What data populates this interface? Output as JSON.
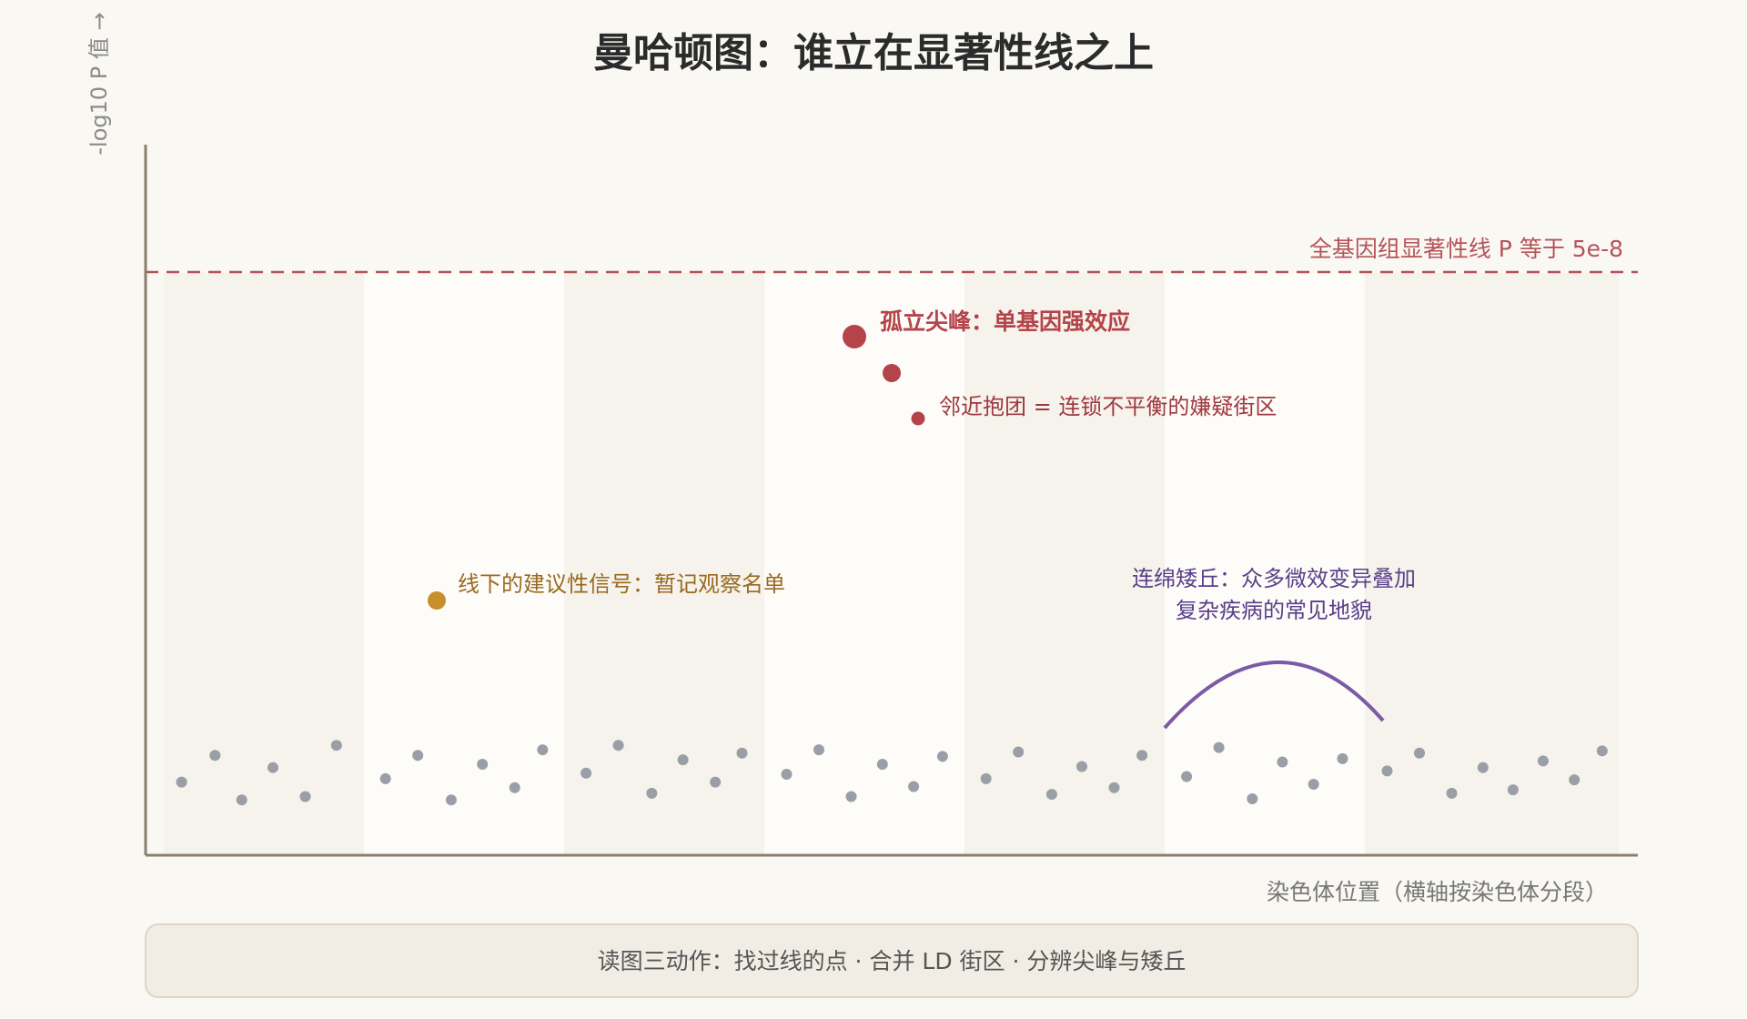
{
  "header": {
    "title": "曼哈顿图：谁立在显著性线之上"
  },
  "axes": {
    "y_label": "-log10 P 值 →",
    "x_label": "染色体位置（横轴按染色体分段）"
  },
  "threshold": {
    "label": "全基因组显著性线 P 等于 5e-8"
  },
  "annotations": {
    "peak": "孤立尖峰：单基因强效应",
    "cluster": "邻近抱团 = 连锁不平衡的嫌疑街区",
    "suggestive": "线下的建议性信号：暂记观察名单",
    "hill": [
      "连绵矮丘：众多微效变异叠加",
      "复杂疾病的常见地貌"
    ]
  },
  "footer": {
    "text": "读图三动作：找过线的点 · 合并 LD 街区 · 分辨尖峰与矮丘"
  }
}
